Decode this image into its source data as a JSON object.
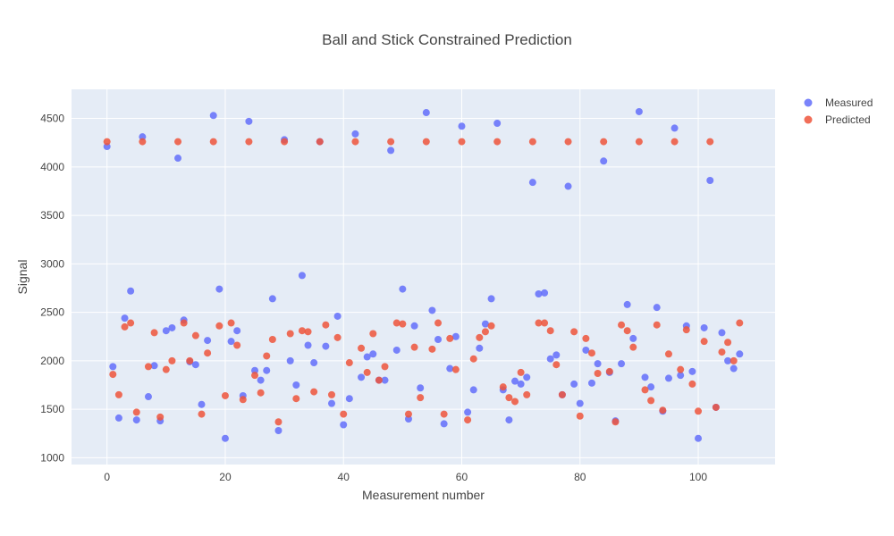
{
  "chart_data": {
    "type": "scatter",
    "title": "Ball and Stick Constrained Prediction",
    "xlabel": "Measurement number",
    "ylabel": "Signal",
    "xlim": [
      -6,
      113
    ],
    "ylim": [
      930,
      4800
    ],
    "x_ticks": [
      0,
      20,
      40,
      60,
      80,
      100
    ],
    "y_ticks": [
      1000,
      1500,
      2000,
      2500,
      3000,
      3500,
      4000,
      4500
    ],
    "grid": true,
    "legend_position": "top-right",
    "series": [
      {
        "name": "Measured",
        "color": "#636efa",
        "x": [
          0,
          1,
          2,
          3,
          4,
          5,
          6,
          7,
          8,
          9,
          10,
          11,
          12,
          13,
          14,
          15,
          16,
          17,
          18,
          19,
          20,
          21,
          22,
          23,
          24,
          25,
          26,
          27,
          28,
          29,
          30,
          31,
          32,
          33,
          34,
          35,
          36,
          37,
          38,
          39,
          40,
          41,
          42,
          43,
          44,
          45,
          46,
          47,
          48,
          49,
          50,
          51,
          52,
          53,
          54,
          55,
          56,
          57,
          58,
          59,
          60,
          61,
          62,
          63,
          64,
          65,
          66,
          67,
          68,
          69,
          70,
          71,
          72,
          73,
          74,
          75,
          76,
          77,
          78,
          79,
          80,
          81,
          82,
          83,
          84,
          85,
          86,
          87,
          88,
          89,
          90,
          91,
          92,
          93,
          94,
          95,
          96,
          97,
          98,
          99,
          100,
          101,
          102,
          103,
          104,
          105,
          106,
          107
        ],
        "y": [
          4210,
          1940,
          1410,
          2440,
          2720,
          1390,
          4310,
          1630,
          1950,
          1380,
          2310,
          2340,
          4090,
          2420,
          1990,
          1960,
          1550,
          2210,
          4530,
          2740,
          1200,
          2200,
          2310,
          1640,
          4470,
          1900,
          1800,
          1900,
          2640,
          1280,
          4280,
          2000,
          1750,
          2880,
          2160,
          1980,
          4260,
          2150,
          1560,
          2460,
          1340,
          1610,
          4340,
          1830,
          2040,
          2070,
          1800,
          1800,
          4170,
          2110,
          2740,
          1400,
          2360,
          1720,
          4560,
          2520,
          2220,
          1350,
          1920,
          2250,
          4420,
          1470,
          1700,
          2130,
          2380,
          2640,
          4450,
          1700,
          1390,
          1790,
          1760,
          1830,
          3840,
          2690,
          2700,
          2020,
          2060,
          1650,
          3800,
          1760,
          1560,
          2110,
          1770,
          1970,
          4060,
          1880,
          1380,
          1970,
          2580,
          2230,
          4570,
          1830,
          1730,
          2550,
          1480,
          1820,
          4400,
          1850,
          2360,
          1890,
          1200,
          2340,
          3860,
          1520,
          2290,
          2000,
          1920,
          2070
        ]
      },
      {
        "name": "Predicted",
        "color": "#ef553b",
        "x": [
          0,
          1,
          2,
          3,
          4,
          5,
          6,
          7,
          8,
          9,
          10,
          11,
          12,
          13,
          14,
          15,
          16,
          17,
          18,
          19,
          20,
          21,
          22,
          23,
          24,
          25,
          26,
          27,
          28,
          29,
          30,
          31,
          32,
          33,
          34,
          35,
          36,
          37,
          38,
          39,
          40,
          41,
          42,
          43,
          44,
          45,
          46,
          47,
          48,
          49,
          50,
          51,
          52,
          53,
          54,
          55,
          56,
          57,
          58,
          59,
          60,
          61,
          62,
          63,
          64,
          65,
          66,
          67,
          68,
          69,
          70,
          71,
          72,
          73,
          74,
          75,
          76,
          77,
          78,
          79,
          80,
          81,
          82,
          83,
          84,
          85,
          86,
          87,
          88,
          89,
          90,
          91,
          92,
          93,
          94,
          95,
          96,
          97,
          98,
          99,
          100,
          101,
          102,
          103,
          104,
          105,
          106,
          107
        ],
        "y": [
          4260,
          1860,
          1650,
          2350,
          2390,
          1470,
          4260,
          1940,
          2290,
          1420,
          1910,
          2000,
          4260,
          2390,
          2000,
          2260,
          1450,
          2080,
          4260,
          2360,
          1640,
          2390,
          2160,
          1600,
          4260,
          1850,
          1670,
          2050,
          2220,
          1370,
          4260,
          2280,
          1610,
          2310,
          2300,
          1680,
          4260,
          2370,
          1650,
          2240,
          1450,
          1980,
          4260,
          2130,
          1880,
          2280,
          1800,
          1940,
          4260,
          2390,
          2380,
          1450,
          2140,
          1620,
          4260,
          2120,
          2390,
          1450,
          2230,
          1910,
          4260,
          1390,
          2020,
          2240,
          2300,
          2360,
          4260,
          1730,
          1620,
          1580,
          1880,
          1650,
          4260,
          2390,
          2390,
          2310,
          1960,
          1650,
          4260,
          2300,
          1430,
          2230,
          2080,
          1870,
          4260,
          1890,
          1370,
          2370,
          2310,
          2140,
          4260,
          1700,
          1590,
          2370,
          1490,
          2070,
          4260,
          1910,
          2320,
          1760,
          1480,
          2200,
          4260,
          1520,
          2090,
          2190,
          2000,
          2390
        ]
      }
    ]
  }
}
